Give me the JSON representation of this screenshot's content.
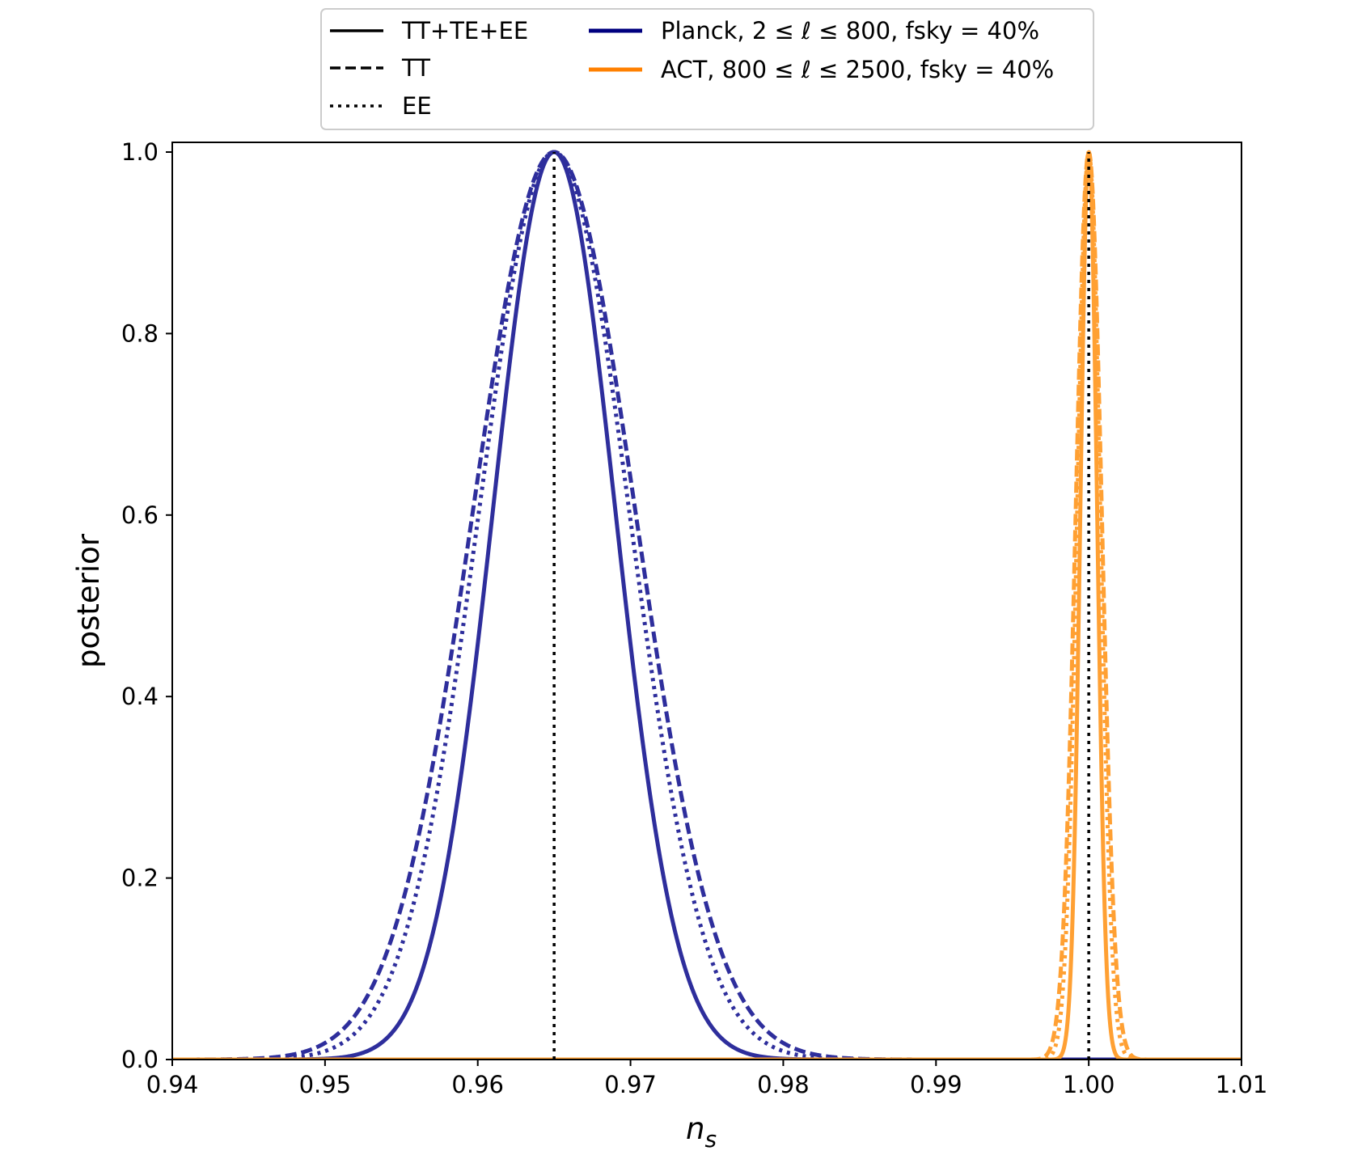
{
  "chart_data": {
    "type": "line",
    "title": "",
    "xlabel_main": "n",
    "xlabel_sub": "s",
    "ylabel": "posterior",
    "xlim": [
      0.94,
      1.01
    ],
    "ylim": [
      0.0,
      1.0
    ],
    "xticks": [
      0.94,
      0.95,
      0.96,
      0.97,
      0.98,
      0.99,
      1.0,
      1.01
    ],
    "xtick_labels": [
      "0.94",
      "0.95",
      "0.96",
      "0.97",
      "0.98",
      "0.99",
      "1.00",
      "1.01"
    ],
    "yticks": [
      0.0,
      0.2,
      0.4,
      0.6,
      0.8,
      1.0
    ],
    "ytick_labels": [
      "0.0",
      "0.2",
      "0.4",
      "0.6",
      "0.8",
      "1.0"
    ],
    "grid": false,
    "legend_position": "top-center, above plot",
    "legend": {
      "styles": [
        {
          "label": "TT+TE+EE",
          "linestyle": "solid"
        },
        {
          "label": "TT",
          "linestyle": "dashed"
        },
        {
          "label": "EE",
          "linestyle": "dotted"
        }
      ],
      "experiments": [
        {
          "label": "Planck, 2 ≤ ℓ ≤ 800, fsky = 40%",
          "color": "#00007f"
        },
        {
          "label": "ACT, 800 ≤ ℓ ≤ 2500, fsky = 40%",
          "color": "#ff8000"
        }
      ]
    },
    "fiducial_lines": [
      0.965,
      1.0
    ],
    "series": [
      {
        "name": "Planck TT+TE+EE",
        "experiment": "Planck",
        "linestyle": "solid",
        "color": "#2e2e9c",
        "mean": 0.965,
        "sigma": 0.004
      },
      {
        "name": "Planck TT",
        "experiment": "Planck",
        "linestyle": "dashed",
        "color": "#2e2e9c",
        "mean": 0.965,
        "sigma": 0.0053
      },
      {
        "name": "Planck EE",
        "experiment": "Planck",
        "linestyle": "dotted",
        "color": "#2e2e9c",
        "mean": 0.965,
        "sigma": 0.0049
      },
      {
        "name": "ACT TT+TE+EE",
        "experiment": "ACT",
        "linestyle": "solid",
        "color": "#ffa033",
        "mean": 1.0,
        "sigma": 0.00055
      },
      {
        "name": "ACT TT",
        "experiment": "ACT",
        "linestyle": "dashed",
        "color": "#ffa033",
        "mean": 1.0,
        "sigma": 0.00085
      },
      {
        "name": "ACT EE",
        "experiment": "ACT",
        "linestyle": "dotted",
        "color": "#ffa033",
        "mean": 1.0,
        "sigma": 0.00075
      }
    ]
  }
}
